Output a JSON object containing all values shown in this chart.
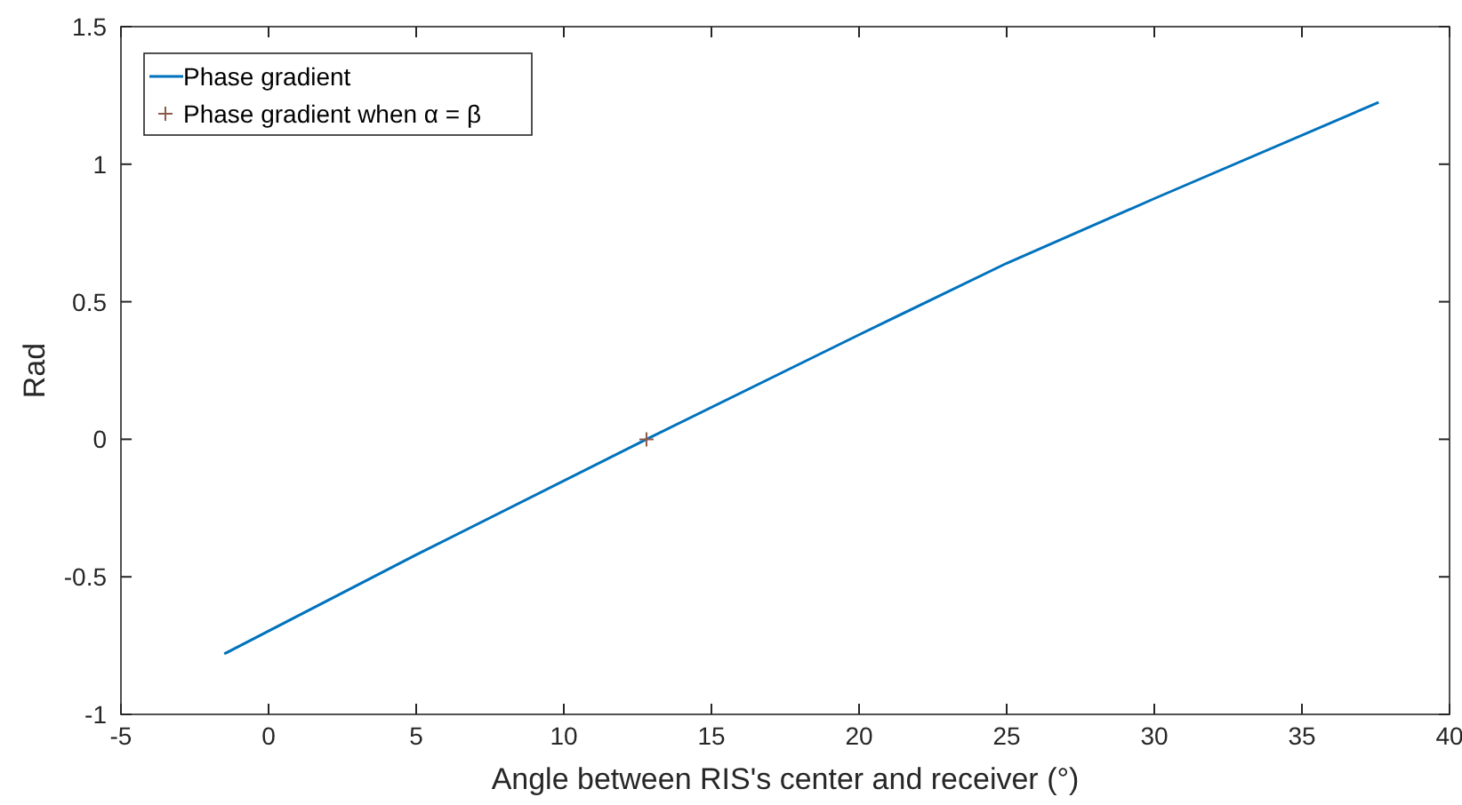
{
  "chart_data": {
    "type": "line",
    "xlabel": "Angle between RIS's center and receiver (°)",
    "ylabel": "Rad",
    "xlim": [
      -5,
      40
    ],
    "ylim": [
      -1,
      1.5
    ],
    "xticks": [
      -5,
      0,
      5,
      10,
      15,
      20,
      25,
      30,
      35,
      40
    ],
    "yticks": [
      -1,
      -0.5,
      0,
      0.5,
      1,
      1.5
    ],
    "legend": "top left",
    "grid": false,
    "series": [
      {
        "name": "Phase gradient",
        "color": "#0072bd",
        "x": [
          -1.5,
          5,
          12.8,
          20,
          25,
          30,
          37.6
        ],
        "values": [
          -0.78,
          -0.42,
          0,
          0.38,
          0.64,
          0.875,
          1.225
        ]
      },
      {
        "name": "Phase gradient when α = β",
        "type": "scatter",
        "marker": "cross",
        "color": "#8c5a4a",
        "x": [
          12.8
        ],
        "values": [
          0
        ]
      }
    ]
  }
}
